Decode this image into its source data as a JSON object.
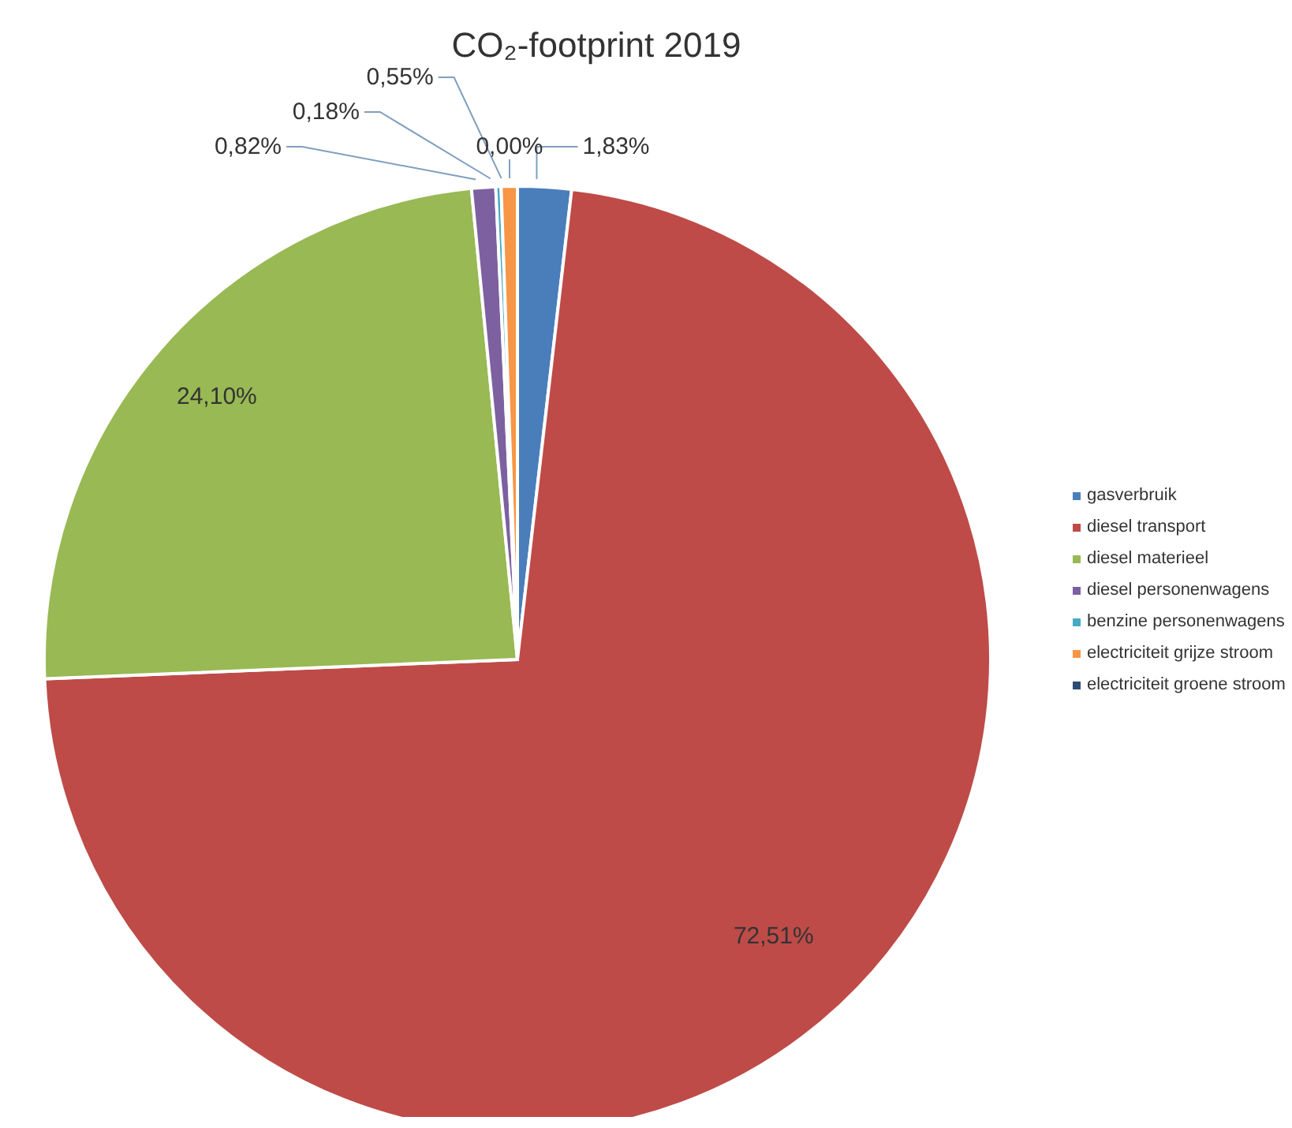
{
  "chart_data": {
    "type": "pie",
    "title": "CO₂-footprint 2019",
    "categories": [
      "gasverbruik",
      "diesel transport",
      "diesel materieel",
      "diesel personenwagens",
      "benzine personenwagens",
      "electriciteit grijze stroom",
      "electriciteit groene stroom"
    ],
    "values": [
      1.83,
      72.51,
      24.1,
      0.82,
      0.18,
      0.55,
      0.0
    ],
    "value_labels": [
      "1,83%",
      "72,51%",
      "24,10%",
      "0,82%",
      "0,18%",
      "0,55%",
      "0,00%"
    ],
    "colors": [
      "#4a7ebb",
      "#be4b48",
      "#98b954",
      "#7d60a0",
      "#46aac5",
      "#f79646",
      "#2c4d75"
    ],
    "legend": "right"
  }
}
